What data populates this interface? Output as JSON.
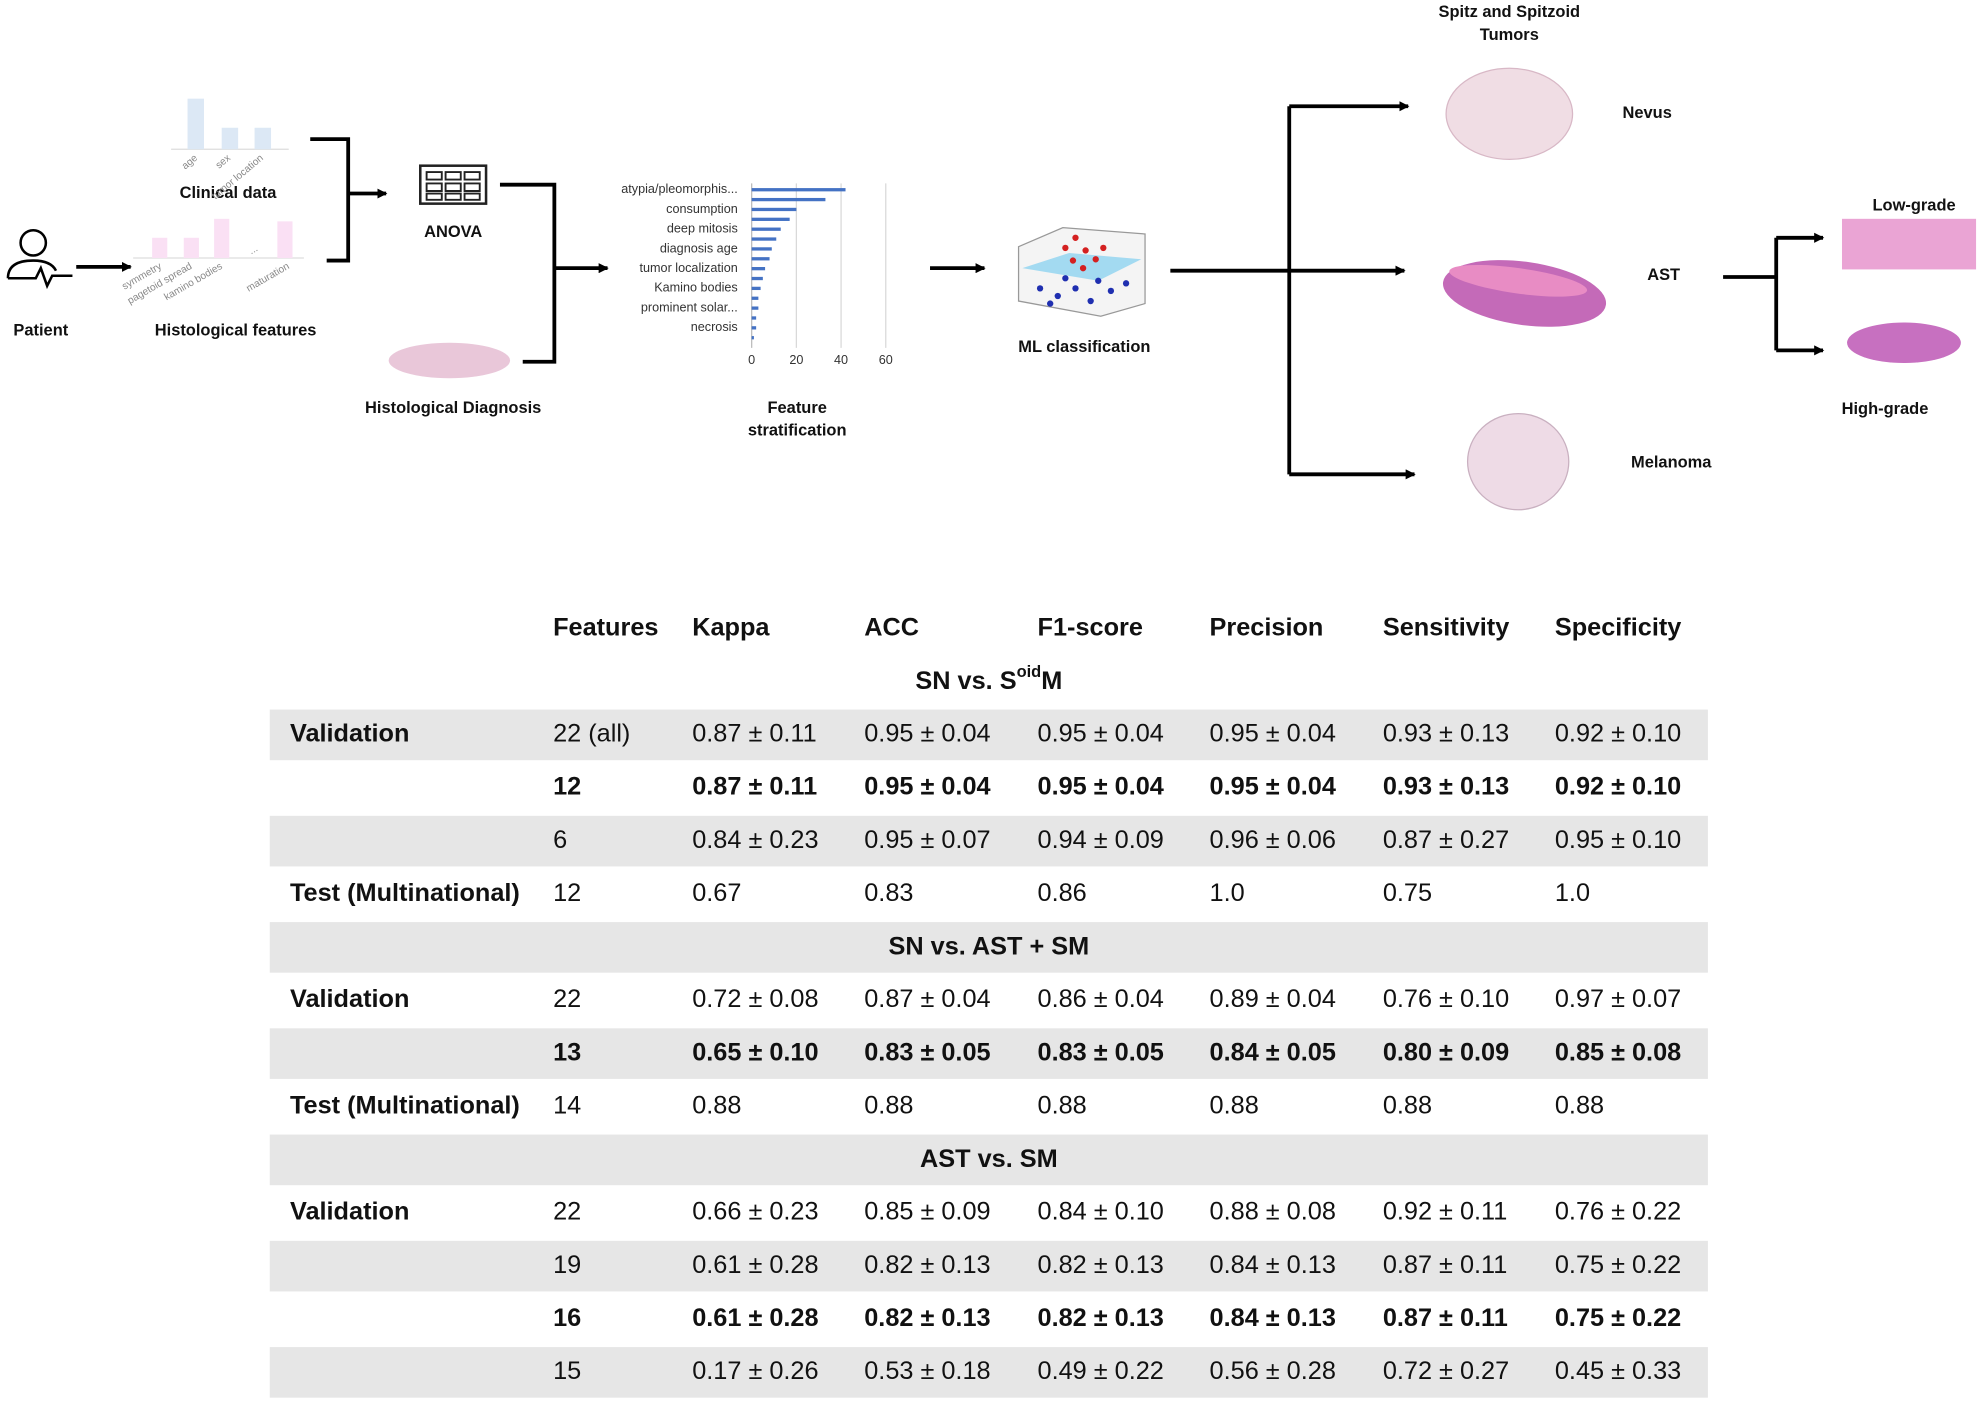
{
  "diagram": {
    "patient": "Patient",
    "clinical_data": {
      "title": "Clinical data",
      "labels": [
        "age",
        "sex",
        "tumor location"
      ]
    },
    "histological_features": {
      "title": "Histological features",
      "labels": [
        "symmetry",
        "pagetoid spread",
        "kamino bodies",
        "...",
        "maturation"
      ]
    },
    "anova": "ANOVA",
    "histological_diagnosis": "Histological Diagnosis",
    "feature_chart": {
      "type": "bar",
      "orientation": "horizontal",
      "categories": [
        "atypia/pleomorphis...",
        null,
        "consumption",
        null,
        "deep mitosis",
        null,
        "diagnosis age",
        null,
        "tumor localization",
        null,
        "Kamino bodies",
        null,
        "prominent solar...",
        null,
        "necrosis",
        null
      ],
      "values": [
        42,
        33,
        20,
        17,
        13,
        11,
        9,
        8,
        6,
        5,
        4,
        3,
        3,
        2,
        2,
        1
      ],
      "color": "#4472c4",
      "xlim": [
        0,
        60
      ],
      "xticks": [
        0,
        20,
        40,
        60
      ],
      "grid": true
    },
    "feature_stratification": [
      "Feature",
      "stratification"
    ],
    "ml_classification": "ML classification",
    "tumors_title": [
      "Spitz and Spitzoid",
      "Tumors"
    ],
    "classes": {
      "nevus": "Nevus",
      "ast": "AST",
      "melanoma": "Melanoma",
      "low_grade": "Low-grade",
      "high_grade": "High-grade"
    }
  },
  "table": {
    "header": [
      "Features",
      "Kappa",
      "ACC",
      "F1-score",
      "Precision",
      "Sensitivity",
      "Specificity"
    ],
    "sections": [
      {
        "title": [
          "SN vs. S",
          "oid",
          "M"
        ],
        "sup_index": 1,
        "rows": [
          {
            "group": "Validation",
            "cells": [
              "22 (all)",
              "0.87 ± 0.11",
              "0.95 ± 0.04",
              "0.95 ± 0.04",
              "0.95 ± 0.04",
              "0.93 ± 0.13",
              "0.92 ± 0.10"
            ]
          },
          {
            "bold": true,
            "cells": [
              "12",
              "0.87 ± 0.11",
              "0.95 ± 0.04",
              "0.95 ± 0.04",
              "0.95 ± 0.04",
              "0.93 ± 0.13",
              "0.92 ± 0.10"
            ]
          },
          {
            "cells": [
              "6",
              "0.84 ± 0.23",
              "0.95 ± 0.07",
              "0.94 ± 0.09",
              "0.96 ± 0.06",
              "0.87 ± 0.27",
              "0.95 ± 0.10"
            ]
          },
          {
            "group": "Test (Multinational)",
            "cells": [
              "12",
              "0.67",
              "0.83",
              "0.86",
              "1.0",
              "0.75",
              "1.0"
            ]
          }
        ]
      },
      {
        "title": [
          "SN vs. AST + SM"
        ],
        "rows": [
          {
            "group": "Validation",
            "cells": [
              "22",
              "0.72 ± 0.08",
              "0.87 ± 0.04",
              "0.86 ± 0.04",
              "0.89 ± 0.04",
              "0.76 ± 0.10",
              "0.97 ± 0.07"
            ]
          },
          {
            "bold": true,
            "cells": [
              "13",
              "0.65 ± 0.10",
              "0.83 ± 0.05",
              "0.83 ± 0.05",
              "0.84 ± 0.05",
              "0.80 ± 0.09",
              "0.85 ± 0.08"
            ]
          },
          {
            "group": "Test (Multinational)",
            "cells": [
              "14",
              "0.88",
              "0.88",
              "0.88",
              "0.88",
              "0.88",
              "0.88"
            ]
          }
        ]
      },
      {
        "title": [
          "AST vs. SM"
        ],
        "rows": [
          {
            "group": "Validation",
            "cells": [
              "22",
              "0.66 ± 0.23",
              "0.85 ± 0.09",
              "0.84 ± 0.10",
              "0.88 ± 0.08",
              "0.92 ± 0.11",
              "0.76 ± 0.22"
            ]
          },
          {
            "cells": [
              "19",
              "0.61 ± 0.28",
              "0.82 ± 0.13",
              "0.82 ± 0.13",
              "0.84 ± 0.13",
              "0.87 ± 0.11",
              "0.75 ± 0.22"
            ]
          },
          {
            "bold": true,
            "cells": [
              "16",
              "0.61 ± 0.28",
              "0.82 ± 0.13",
              "0.82 ± 0.13",
              "0.84 ± 0.13",
              "0.87 ± 0.11",
              "0.75 ± 0.22"
            ]
          },
          {
            "cells": [
              "15",
              "0.17 ± 0.26",
              "0.53 ± 0.18",
              "0.49 ± 0.22",
              "0.56 ± 0.28",
              "0.72 ± 0.27",
              "0.45 ± 0.33"
            ]
          }
        ]
      }
    ]
  }
}
